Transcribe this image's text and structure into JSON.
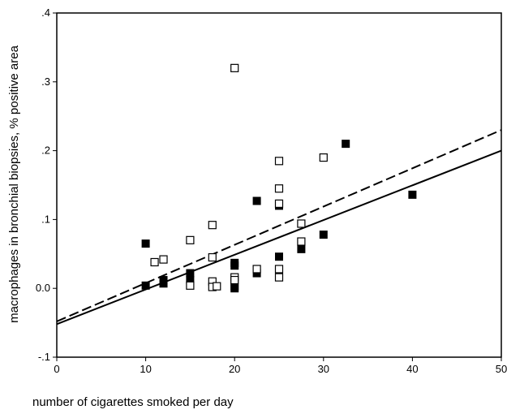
{
  "chart_data": {
    "type": "scatter",
    "title": "",
    "xlabel": "number of cigarettes smoked per day",
    "ylabel": "macrophages in bronchial biopsies, %  positive area",
    "xlim": [
      0,
      50
    ],
    "ylim": [
      -0.1,
      0.4
    ],
    "x_ticks": [
      0,
      10,
      20,
      30,
      40,
      50
    ],
    "y_ticks": [
      -0.1,
      0.0,
      0.1,
      0.2,
      0.3,
      0.4
    ],
    "x_tick_labels": [
      "0",
      "10",
      "20",
      "30",
      "40",
      "50"
    ],
    "y_tick_labels": [
      "-.1",
      "0.0",
      ".1",
      ".2",
      ".3",
      ".4"
    ],
    "grid": false,
    "legend": "none",
    "series": [
      {
        "marker": "filled-square",
        "color": "#000000",
        "points": [
          {
            "x": 10,
            "y": 0.065
          },
          {
            "x": 10,
            "y": 0.004
          },
          {
            "x": 12,
            "y": 0.012
          },
          {
            "x": 12,
            "y": 0.007
          },
          {
            "x": 15,
            "y": 0.022
          },
          {
            "x": 15,
            "y": 0.012
          },
          {
            "x": 20,
            "y": 0.037
          },
          {
            "x": 20,
            "y": 0.033
          },
          {
            "x": 20,
            "y": 0.003
          },
          {
            "x": 20,
            "y": 0.0
          },
          {
            "x": 22.5,
            "y": 0.127
          },
          {
            "x": 22.5,
            "y": 0.022
          },
          {
            "x": 25,
            "y": 0.12
          },
          {
            "x": 25,
            "y": 0.046
          },
          {
            "x": 27.5,
            "y": 0.057
          },
          {
            "x": 30,
            "y": 0.078
          },
          {
            "x": 32.5,
            "y": 0.21
          },
          {
            "x": 40,
            "y": 0.136
          }
        ]
      },
      {
        "marker": "open-square",
        "color": "#000000",
        "points": [
          {
            "x": 11,
            "y": 0.038
          },
          {
            "x": 12,
            "y": 0.042
          },
          {
            "x": 15,
            "y": 0.07
          },
          {
            "x": 15,
            "y": 0.004
          },
          {
            "x": 17.5,
            "y": 0.092
          },
          {
            "x": 17.5,
            "y": 0.045
          },
          {
            "x": 17.5,
            "y": 0.01
          },
          {
            "x": 17.5,
            "y": 0.002
          },
          {
            "x": 18,
            "y": 0.003
          },
          {
            "x": 20,
            "y": 0.32
          },
          {
            "x": 20,
            "y": 0.016
          },
          {
            "x": 20,
            "y": 0.012
          },
          {
            "x": 22.5,
            "y": 0.028
          },
          {
            "x": 25,
            "y": 0.185
          },
          {
            "x": 25,
            "y": 0.145
          },
          {
            "x": 25,
            "y": 0.123
          },
          {
            "x": 25,
            "y": 0.028
          },
          {
            "x": 25,
            "y": 0.016
          },
          {
            "x": 27.5,
            "y": 0.094
          },
          {
            "x": 27.5,
            "y": 0.068
          },
          {
            "x": 30,
            "y": 0.19
          }
        ]
      }
    ],
    "fit_lines": [
      {
        "style": "solid",
        "color": "#000000",
        "x": [
          0,
          50
        ],
        "y": [
          -0.052,
          0.2
        ]
      },
      {
        "style": "dashed",
        "color": "#000000",
        "x": [
          0,
          50
        ],
        "y": [
          -0.048,
          0.23
        ]
      }
    ]
  }
}
